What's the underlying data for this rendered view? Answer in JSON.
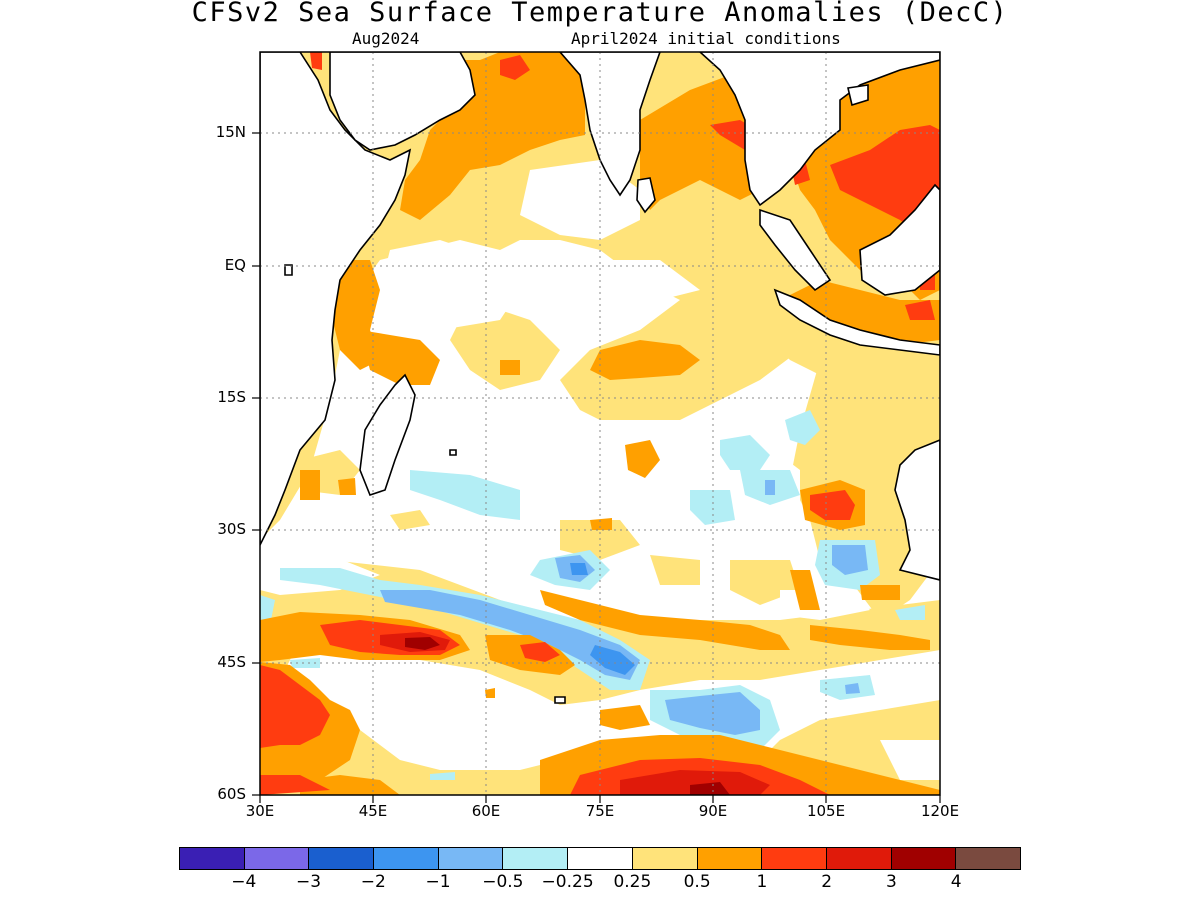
{
  "header": {
    "title": "CFSv2 Sea Surface Temperature Anomalies (DecC)",
    "target_month": "Aug2024",
    "initial_conditions": "April2024 initial conditions"
  },
  "map": {
    "region": "Indian Ocean",
    "lon_range": [
      30,
      120
    ],
    "lat_range": [
      -60,
      22
    ],
    "lat_tick_labels": [
      "15N",
      "EQ",
      "15S",
      "30S",
      "45S",
      "60S"
    ],
    "lon_tick_labels": [
      "30E",
      "45E",
      "60E",
      "75E",
      "90E",
      "105E",
      "120E"
    ],
    "gridlines": "dotted"
  },
  "colorbar": {
    "colors": [
      "#3a1fb4",
      "#7b68e8",
      "#1a5fcf",
      "#3d95f0",
      "#78b8f5",
      "#b3eef5",
      "#ffffff",
      "#ffe37a",
      "#ffa000",
      "#ff3c10",
      "#e01a0a",
      "#a00000",
      "#7a4a3f"
    ],
    "labels": [
      "−4",
      "−3",
      "−2",
      "−1",
      "−0.5",
      "−0.25",
      "0.25",
      "0.5",
      "1",
      "2",
      "3",
      "4"
    ]
  }
}
